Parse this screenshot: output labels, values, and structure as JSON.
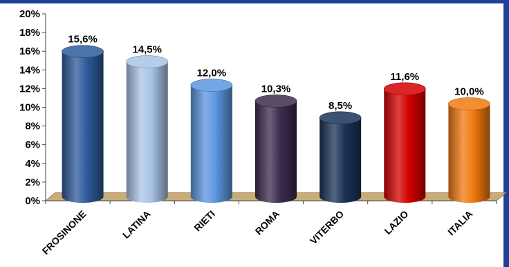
{
  "chart_data": {
    "type": "bar",
    "categories": [
      "FROSINONE",
      "LATINA",
      "RIETI",
      "ROMA",
      "VITERBO",
      "LAZIO",
      "ITALIA"
    ],
    "values": [
      15.6,
      14.5,
      12.0,
      10.3,
      8.5,
      11.6,
      10.0
    ],
    "data_labels": [
      "15,6%",
      "14,5%",
      "12,0%",
      "10,3%",
      "8,5%",
      "11,6%",
      "10,0%"
    ],
    "colors": [
      "#2e5b9a",
      "#a8c4e6",
      "#5b96e0",
      "#3c2c4e",
      "#1a3358",
      "#d40000",
      "#f27a10"
    ],
    "ylim": [
      0,
      20
    ],
    "yticks": [
      0,
      2,
      4,
      6,
      8,
      10,
      12,
      14,
      16,
      18,
      20
    ],
    "ytick_labels": [
      "0%",
      "2%",
      "4%",
      "6%",
      "8%",
      "10%",
      "12%",
      "14%",
      "16%",
      "18%",
      "20%"
    ],
    "title": "",
    "xlabel": "",
    "ylabel": "",
    "grid": false,
    "floor_color": "#c9ad79",
    "frame_color": "#1f3f99"
  }
}
